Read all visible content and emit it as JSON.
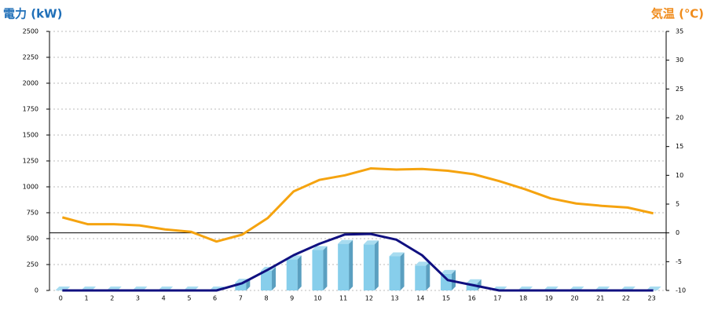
{
  "chart_data": {
    "type": "bar-line",
    "title": "電力 (kW)",
    "title_color": "#1f6fb8",
    "y2_title": "気温 (℃)",
    "y2_title_color": "#f08c1c",
    "categories": [
      "0",
      "1",
      "2",
      "3",
      "4",
      "5",
      "6",
      "7",
      "8",
      "9",
      "10",
      "11",
      "12",
      "13",
      "14",
      "15",
      "16",
      "17",
      "18",
      "19",
      "20",
      "21",
      "22",
      "23"
    ],
    "series": [
      {
        "type": "bar",
        "color": "#87ceeb",
        "values": [
          0,
          0,
          0,
          0,
          0,
          0,
          0,
          75,
          190,
          300,
          390,
          450,
          445,
          330,
          240,
          160,
          70,
          0,
          0,
          0,
          0,
          0,
          0,
          0
        ]
      },
      {
        "type": "line",
        "color": "#101080",
        "values": [
          0,
          0,
          0,
          0,
          0,
          0,
          0,
          70,
          200,
          340,
          450,
          540,
          545,
          490,
          340,
          100,
          50,
          0,
          0,
          0,
          0,
          0,
          0,
          0
        ]
      },
      {
        "type": "line",
        "axis": "y2",
        "color": "#f5a30f",
        "values": [
          2.7,
          1.5,
          1.5,
          1.3,
          0.6,
          0.2,
          -1.5,
          -0.3,
          2.6,
          7.2,
          9.2,
          10.0,
          11.2,
          11.0,
          11.1,
          10.8,
          10.2,
          9.0,
          7.6,
          6.0,
          5.1,
          4.7,
          4.4,
          3.4
        ]
      }
    ],
    "ylim": [
      0,
      2500
    ],
    "yticks": [
      0,
      250,
      500,
      750,
      1000,
      1250,
      1500,
      1750,
      2000,
      2250,
      2500
    ],
    "y2lim": [
      -10,
      35
    ],
    "y2ticks": [
      -10,
      -5,
      0,
      5,
      10,
      15,
      20,
      25,
      30,
      35
    ],
    "grid": true,
    "y2_zero_line": true
  }
}
